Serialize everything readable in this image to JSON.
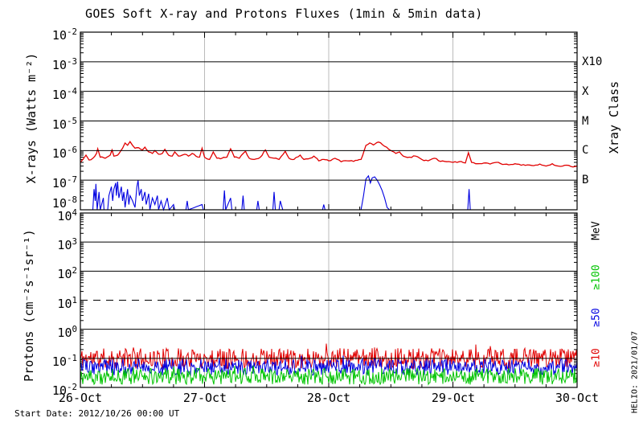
{
  "title": "GOES Soft X-ray and Protons Fluxes   (1min & 5min data)",
  "footer": {
    "start_date": "Start Date: 2012/10/26 00:00 UT",
    "stamp": "HELIO: 2021/01/07"
  },
  "colors": {
    "xray_long": "#e10000",
    "xray_short": "#0000e1",
    "protons_ge10": "#e10000",
    "protons_ge50": "#0000e1",
    "protons_ge100": "#00c400",
    "day_gridline": "#bbbbbb",
    "frame": "#000000"
  },
  "chart_data": {
    "type": "line",
    "title": "GOES Soft X-ray and Protons Fluxes   (1min & 5min data)",
    "x_axis": {
      "start": "2012/10/26 00:00 UT",
      "span_days": 4,
      "tick_labels": [
        "26-Oct",
        "27-Oct",
        "28-Oct",
        "29-Oct",
        "30-Oct"
      ],
      "minor_tick_hours": 6,
      "grid": "gray vertical line at each day boundary"
    },
    "panels": [
      {
        "id": "xray",
        "ylabel": "X-rays (Watts m⁻²)",
        "ylim": [
          1e-08,
          0.01
        ],
        "tick_exponents": [
          -2,
          -3,
          -4,
          -5,
          -6,
          -7,
          -8
        ],
        "right_axis": {
          "title": "Xray Class",
          "labels": [
            {
              "text": "X10",
              "exp": -3
            },
            {
              "text": "X",
              "exp": -4
            },
            {
              "text": "M",
              "exp": -5
            },
            {
              "text": "C",
              "exp": -6
            },
            {
              "text": "B",
              "exp": -7
            }
          ]
        },
        "series": [
          {
            "name": "xray-long",
            "color": "#e10000",
            "unit": "Watts m⁻²",
            "points": [
              [
                0.0,
                4e-07
              ],
              [
                0.02,
                5e-07
              ],
              [
                0.045,
                7e-07
              ],
              [
                0.07,
                4.8e-07
              ],
              [
                0.1,
                5.5e-07
              ],
              [
                0.13,
                8e-07
              ],
              [
                0.14,
                1.15e-06
              ],
              [
                0.16,
                6e-07
              ],
              [
                0.2,
                5.5e-07
              ],
              [
                0.24,
                7e-07
              ],
              [
                0.255,
                1.05e-06
              ],
              [
                0.27,
                6.5e-07
              ],
              [
                0.3,
                7e-07
              ],
              [
                0.34,
                1.2e-06
              ],
              [
                0.36,
                1.8e-06
              ],
              [
                0.38,
                1.5e-06
              ],
              [
                0.4,
                2e-06
              ],
              [
                0.42,
                1.5e-06
              ],
              [
                0.44,
                1.2e-06
              ],
              [
                0.47,
                1.25e-06
              ],
              [
                0.5,
                1.05e-06
              ],
              [
                0.52,
                1.3e-06
              ],
              [
                0.55,
                9e-07
              ],
              [
                0.58,
                8e-07
              ],
              [
                0.6,
                1e-06
              ],
              [
                0.63,
                7.5e-07
              ],
              [
                0.66,
                8e-07
              ],
              [
                0.68,
                1.1e-06
              ],
              [
                0.71,
                7e-07
              ],
              [
                0.74,
                6.5e-07
              ],
              [
                0.76,
                9e-07
              ],
              [
                0.79,
                6.5e-07
              ],
              [
                0.82,
                7e-07
              ],
              [
                0.84,
                7.5e-07
              ],
              [
                0.87,
                6.5e-07
              ],
              [
                0.9,
                8e-07
              ],
              [
                0.93,
                6.5e-07
              ],
              [
                0.96,
                6e-07
              ],
              [
                0.98,
                1.2e-06
              ],
              [
                1.0,
                6e-07
              ],
              [
                1.04,
                5e-07
              ],
              [
                1.07,
                9e-07
              ],
              [
                1.1,
                5.5e-07
              ],
              [
                1.14,
                5.5e-07
              ],
              [
                1.18,
                6e-07
              ],
              [
                1.21,
                1.15e-06
              ],
              [
                1.24,
                6e-07
              ],
              [
                1.28,
                5.5e-07
              ],
              [
                1.33,
                9.5e-07
              ],
              [
                1.36,
                5.5e-07
              ],
              [
                1.4,
                5e-07
              ],
              [
                1.45,
                6e-07
              ],
              [
                1.49,
                1.05e-06
              ],
              [
                1.52,
                6e-07
              ],
              [
                1.56,
                5.5e-07
              ],
              [
                1.6,
                5e-07
              ],
              [
                1.65,
                9.5e-07
              ],
              [
                1.68,
                5.5e-07
              ],
              [
                1.72,
                5e-07
              ],
              [
                1.77,
                7e-07
              ],
              [
                1.8,
                5e-07
              ],
              [
                1.85,
                5.5e-07
              ],
              [
                1.88,
                6.5e-07
              ],
              [
                1.92,
                4.5e-07
              ],
              [
                1.96,
                5e-07
              ],
              [
                2.0,
                4.5e-07
              ],
              [
                2.05,
                5.5e-07
              ],
              [
                2.1,
                4.2e-07
              ],
              [
                2.15,
                4.5e-07
              ],
              [
                2.2,
                4.3e-07
              ],
              [
                2.26,
                5e-07
              ],
              [
                2.3,
                1.5e-06
              ],
              [
                2.33,
                1.8e-06
              ],
              [
                2.36,
                1.55e-06
              ],
              [
                2.4,
                1.95e-06
              ],
              [
                2.45,
                1.4e-06
              ],
              [
                2.5,
                1e-06
              ],
              [
                2.54,
                8e-07
              ],
              [
                2.57,
                9e-07
              ],
              [
                2.6,
                6.5e-07
              ],
              [
                2.65,
                6e-07
              ],
              [
                2.7,
                6.5e-07
              ],
              [
                2.75,
                5e-07
              ],
              [
                2.8,
                4.5e-07
              ],
              [
                2.85,
                5.5e-07
              ],
              [
                2.9,
                4.3e-07
              ],
              [
                2.95,
                4.2e-07
              ],
              [
                3.0,
                4e-07
              ],
              [
                3.05,
                4.2e-07
              ],
              [
                3.1,
                3.8e-07
              ],
              [
                3.125,
                8.5e-07
              ],
              [
                3.15,
                4e-07
              ],
              [
                3.2,
                3.6e-07
              ],
              [
                3.25,
                3.8e-07
              ],
              [
                3.3,
                3.5e-07
              ],
              [
                3.35,
                4e-07
              ],
              [
                3.4,
                3.4e-07
              ],
              [
                3.45,
                3.3e-07
              ],
              [
                3.5,
                3.6e-07
              ],
              [
                3.55,
                3.2e-07
              ],
              [
                3.6,
                3.3e-07
              ],
              [
                3.65,
                3.1e-07
              ],
              [
                3.7,
                3.5e-07
              ],
              [
                3.75,
                3e-07
              ],
              [
                3.8,
                3.6e-07
              ],
              [
                3.85,
                3e-07
              ],
              [
                3.9,
                3.2e-07
              ],
              [
                3.95,
                2.9e-07
              ],
              [
                4.0,
                3e-07
              ]
            ]
          },
          {
            "name": "xray-short",
            "color": "#0000e1",
            "unit": "Watts m⁻²",
            "floor": 1e-08,
            "points": [
              [
                0.0,
                1e-08
              ],
              [
                0.1,
                1e-08
              ],
              [
                0.11,
                5e-08
              ],
              [
                0.12,
                2e-08
              ],
              [
                0.125,
                7.5e-08
              ],
              [
                0.135,
                1e-08
              ],
              [
                0.15,
                4e-08
              ],
              [
                0.16,
                1e-08
              ],
              [
                0.185,
                2.5e-08
              ],
              [
                0.19,
                1e-08
              ],
              [
                0.22,
                1e-08
              ],
              [
                0.23,
                3e-08
              ],
              [
                0.25,
                6e-08
              ],
              [
                0.26,
                2e-08
              ],
              [
                0.27,
                5e-08
              ],
              [
                0.285,
                8e-08
              ],
              [
                0.29,
                3e-08
              ],
              [
                0.3,
                9e-08
              ],
              [
                0.31,
                2.5e-08
              ],
              [
                0.33,
                6e-08
              ],
              [
                0.34,
                2e-08
              ],
              [
                0.35,
                4e-08
              ],
              [
                0.36,
                1.2e-08
              ],
              [
                0.38,
                5e-08
              ],
              [
                0.39,
                1.5e-08
              ],
              [
                0.4,
                3e-08
              ],
              [
                0.42,
                2e-08
              ],
              [
                0.44,
                1.2e-08
              ],
              [
                0.455,
                6e-08
              ],
              [
                0.465,
                1e-07
              ],
              [
                0.475,
                3e-08
              ],
              [
                0.49,
                5e-08
              ],
              [
                0.5,
                2e-08
              ],
              [
                0.52,
                4e-08
              ],
              [
                0.53,
                1.5e-08
              ],
              [
                0.55,
                3.5e-08
              ],
              [
                0.56,
                1e-08
              ],
              [
                0.58,
                2.5e-08
              ],
              [
                0.6,
                1.5e-08
              ],
              [
                0.62,
                3e-08
              ],
              [
                0.63,
                1e-08
              ],
              [
                0.65,
                2e-08
              ],
              [
                0.67,
                1e-08
              ],
              [
                0.7,
                2.5e-08
              ],
              [
                0.715,
                1e-08
              ],
              [
                0.75,
                1.5e-08
              ],
              [
                0.76,
                1e-08
              ],
              [
                0.85,
                1e-08
              ],
              [
                0.86,
                2e-08
              ],
              [
                0.87,
                1e-08
              ],
              [
                0.98,
                1.5e-08
              ],
              [
                0.99,
                1e-08
              ],
              [
                1.15,
                1e-08
              ],
              [
                1.16,
                4.5e-08
              ],
              [
                1.17,
                1e-08
              ],
              [
                1.21,
                2.5e-08
              ],
              [
                1.22,
                1e-08
              ],
              [
                1.3,
                1e-08
              ],
              [
                1.31,
                3e-08
              ],
              [
                1.32,
                1e-08
              ],
              [
                1.42,
                1e-08
              ],
              [
                1.43,
                2e-08
              ],
              [
                1.44,
                1e-08
              ],
              [
                1.55,
                1e-08
              ],
              [
                1.56,
                4e-08
              ],
              [
                1.57,
                1e-08
              ],
              [
                1.6,
                1e-08
              ],
              [
                1.61,
                2e-08
              ],
              [
                1.63,
                1e-08
              ],
              [
                1.95,
                1e-08
              ],
              [
                1.96,
                1.5e-08
              ],
              [
                1.97,
                1e-08
              ],
              [
                2.26,
                1e-08
              ],
              [
                2.28,
                3e-08
              ],
              [
                2.3,
                1.1e-07
              ],
              [
                2.32,
                1.4e-07
              ],
              [
                2.335,
                8e-08
              ],
              [
                2.35,
                1.2e-07
              ],
              [
                2.37,
                1.3e-07
              ],
              [
                2.39,
                1e-07
              ],
              [
                2.41,
                7e-08
              ],
              [
                2.43,
                4.5e-08
              ],
              [
                2.45,
                2.5e-08
              ],
              [
                2.47,
                1.2e-08
              ],
              [
                2.49,
                1e-08
              ],
              [
                3.12,
                1e-08
              ],
              [
                3.13,
                5e-08
              ],
              [
                3.14,
                1e-08
              ],
              [
                4.0,
                1e-08
              ]
            ]
          }
        ]
      },
      {
        "id": "protons",
        "ylabel": "Protons (cm⁻²s⁻¹sr⁻¹)",
        "ylim": [
          0.01,
          10000.0
        ],
        "tick_exponents": [
          4,
          3,
          2,
          1,
          0,
          -1,
          -2
        ],
        "dashed_line_exponent": 1,
        "right_axis": {
          "title": "MeV",
          "labels": [
            {
              "text": "≥100",
              "color": "#00c400"
            },
            {
              "text": "≥50",
              "color": "#0000e1"
            },
            {
              "text": "≥10",
              "color": "#e10000"
            }
          ]
        },
        "series": [
          {
            "name": "protons-ge10",
            "color": "#e10000",
            "unit": "cm⁻²s⁻¹sr⁻¹",
            "band_center": 0.1,
            "band_spread_dex": 0.35
          },
          {
            "name": "protons-ge50",
            "color": "#0000e1",
            "unit": "cm⁻²s⁻¹sr⁻¹",
            "band_center": 0.05,
            "band_spread_dex": 0.28
          },
          {
            "name": "protons-ge100",
            "color": "#00c400",
            "unit": "cm⁻²s⁻¹sr⁻¹",
            "band_center": 0.024,
            "band_spread_dex": 0.28
          }
        ]
      }
    ]
  }
}
